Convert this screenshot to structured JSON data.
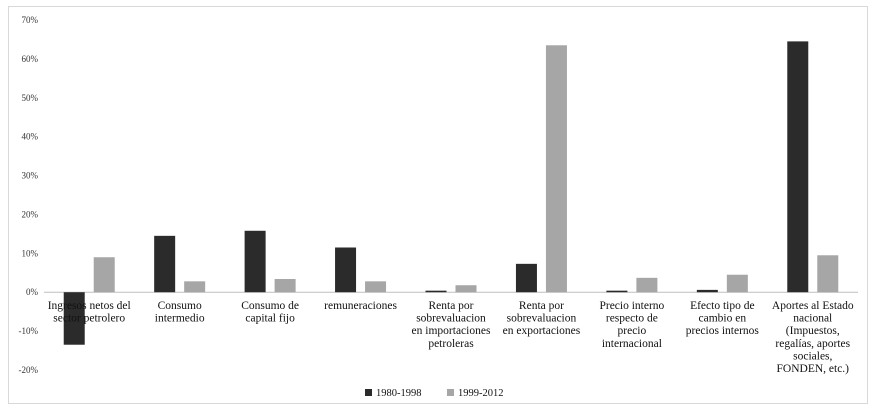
{
  "chart_data": {
    "type": "bar",
    "title": "",
    "xlabel": "",
    "ylabel": "",
    "ylim": [
      -0.2,
      0.7
    ],
    "yticks": [
      "70%",
      "60%",
      "50%",
      "40%",
      "30%",
      "20%",
      "10%",
      "0%",
      "-10%",
      "-20%"
    ],
    "ytick_values": [
      0.7,
      0.6,
      0.5,
      0.4,
      0.3,
      0.2,
      0.1,
      0.0,
      -0.1,
      -0.2
    ],
    "categories": [
      [
        "Ingresos netos del",
        "sector petrolero"
      ],
      [
        "Consumo",
        "intermedio"
      ],
      [
        "Consumo de",
        "capital fijo"
      ],
      [
        "remuneraciones"
      ],
      [
        "Renta por",
        "sobrevaluacion",
        "en importaciones",
        "petroleras"
      ],
      [
        "Renta por",
        "sobrevaluacion",
        "en exportaciones"
      ],
      [
        "Precio interno",
        "respecto de",
        "precio",
        "internacional"
      ],
      [
        "Efecto tipo de",
        "cambio en",
        "precios internos"
      ],
      [
        "Aportes al Estado",
        "nacional",
        "(Impuestos,",
        "regalías, aportes",
        "sociales,",
        "FONDEN, etc.)"
      ]
    ],
    "series": [
      {
        "name": "1980-1998",
        "color": "#2b2b2b",
        "values": [
          -0.135,
          0.145,
          0.158,
          0.115,
          0.004,
          0.073,
          0.004,
          0.006,
          0.645
        ]
      },
      {
        "name": "1999-2012",
        "color": "#a6a6a6",
        "values": [
          0.09,
          0.028,
          0.034,
          0.028,
          0.018,
          0.635,
          0.037,
          0.045,
          0.095
        ]
      }
    ],
    "legend_position": "bottom",
    "grid": false
  }
}
